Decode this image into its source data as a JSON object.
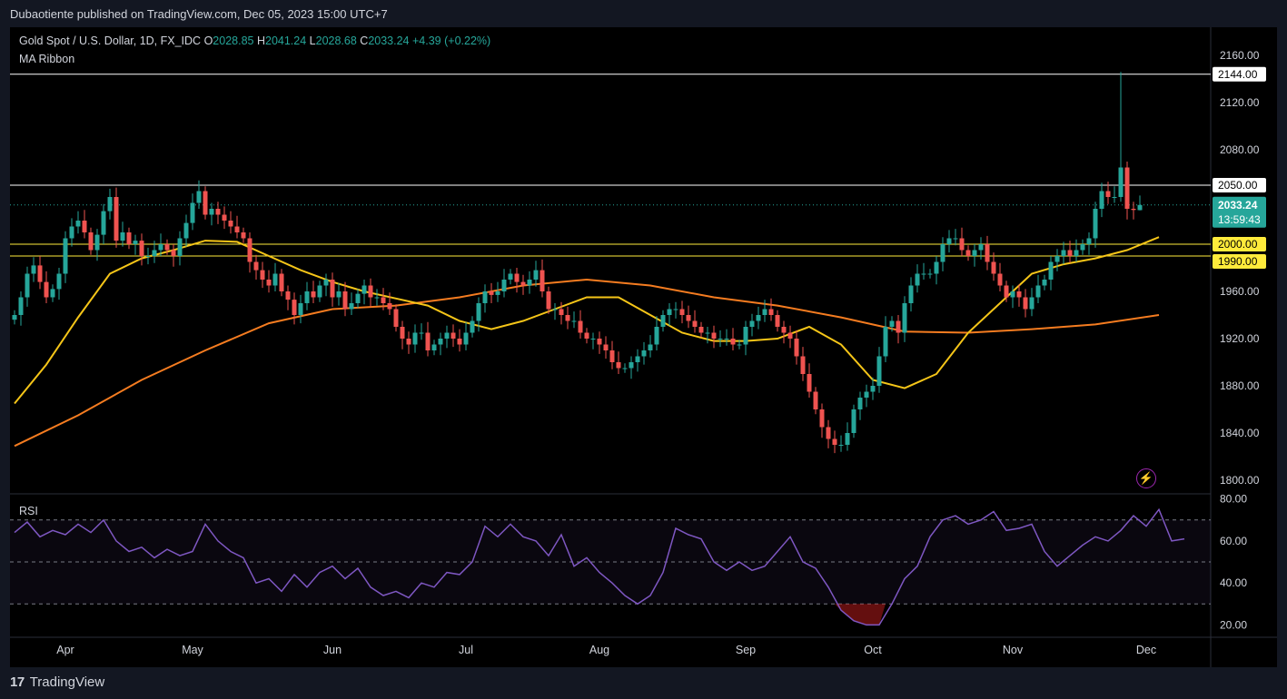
{
  "header": {
    "publisher_line": "Dubaotiente published on TradingView.com, Dec 05, 2023 15:00 UTC+7"
  },
  "legend": {
    "symbol": "Gold Spot / U.S. Dollar, 1D, FX_IDC",
    "open_label": "O",
    "open": "2028.85",
    "high_label": "H",
    "high": "2041.24",
    "low_label": "L",
    "low": "2028.68",
    "close_label": "C",
    "close": "2033.24",
    "change": "+4.39 (+0.22%)",
    "indicator": "MA Ribbon"
  },
  "rsi_panel": {
    "label": "RSI",
    "axis_ticks": [
      "80.00",
      "60.00",
      "40.00",
      "20.00"
    ]
  },
  "price_axis": {
    "ticks": [
      "2160.00",
      "2120.00",
      "2080.00",
      "1960.00",
      "1920.00",
      "1880.00",
      "1840.00",
      "1800.00"
    ],
    "current_price": "2033.24",
    "countdown": "13:59:43"
  },
  "time_axis": {
    "labels": [
      "Apr",
      "May",
      "Jun",
      "Jul",
      "Aug",
      "Sep",
      "Oct",
      "Nov",
      "Dec"
    ]
  },
  "horizontal_levels": [
    {
      "value": 2144.0,
      "label": "2144.00",
      "style": "white"
    },
    {
      "value": 2050.0,
      "label": "2050.00",
      "style": "white"
    },
    {
      "value": 2000.0,
      "label": "2000.00",
      "style": "yellow"
    },
    {
      "value": 1990.0,
      "label": "1990.00",
      "style": "yellow"
    }
  ],
  "footer": {
    "logo": "17",
    "brand": "TradingView"
  },
  "colors": {
    "up": "#26a69a",
    "down": "#ef5350",
    "ma_fast": "#f5c518",
    "ma_slow": "#f57c20",
    "rsi": "#7e57c2",
    "level_white": "#ffffff",
    "level_yellow": "#ffeb3b"
  },
  "chart_data": {
    "type": "candlestick",
    "symbol": "Gold Spot / U.S. Dollar",
    "timeframe": "1D",
    "ylim": [
      1790,
      2170
    ],
    "rsi_ylim": [
      15,
      82
    ],
    "rsi_levels": [
      70,
      50,
      30
    ],
    "month_markers": [
      {
        "label": "Apr",
        "bar": 8
      },
      {
        "label": "May",
        "bar": 28
      },
      {
        "label": "Jun",
        "bar": 50
      },
      {
        "label": "Jul",
        "bar": 71
      },
      {
        "label": "Aug",
        "bar": 92
      },
      {
        "label": "Sep",
        "bar": 115
      },
      {
        "label": "Oct",
        "bar": 135
      },
      {
        "label": "Nov",
        "bar": 157
      },
      {
        "label": "Dec",
        "bar": 178
      }
    ],
    "closes": [
      1940,
      1955,
      1975,
      1982,
      1968,
      1955,
      1962,
      1975,
      2005,
      2015,
      2020,
      2010,
      1995,
      2008,
      2028,
      2040,
      2003,
      2010,
      2000,
      2003,
      1990,
      1990,
      1995,
      2000,
      1995,
      1990,
      2005,
      2018,
      2035,
      2045,
      2025,
      2030,
      2025,
      2020,
      2015,
      2010,
      2005,
      1985,
      1978,
      1970,
      1965,
      1975,
      1960,
      1953,
      1940,
      1950,
      1960,
      1955,
      1965,
      1970,
      1955,
      1960,
      1945,
      1950,
      1958,
      1965,
      1955,
      1955,
      1950,
      1945,
      1930,
      1920,
      1915,
      1925,
      1925,
      1910,
      1915,
      1920,
      1925,
      1920,
      1915,
      1925,
      1935,
      1950,
      1960,
      1957,
      1960,
      1970,
      1975,
      1968,
      1965,
      1970,
      1978,
      1960,
      1945,
      1945,
      1940,
      1935,
      1935,
      1925,
      1920,
      1920,
      1915,
      1910,
      1900,
      1895,
      1895,
      1900,
      1905,
      1910,
      1915,
      1930,
      1940,
      1945,
      1945,
      1940,
      1935,
      1930,
      1925,
      1925,
      1920,
      1920,
      1920,
      1915,
      1915,
      1930,
      1935,
      1940,
      1945,
      1940,
      1930,
      1925,
      1920,
      1905,
      1890,
      1875,
      1860,
      1845,
      1835,
      1830,
      1830,
      1840,
      1860,
      1870,
      1875,
      1880,
      1905,
      1930,
      1935,
      1925,
      1950,
      1965,
      1975,
      1975,
      1975,
      1985,
      2000,
      2005,
      2005,
      1995,
      1990,
      1995,
      2000,
      1985,
      1975,
      1965,
      1955,
      1960,
      1955,
      1945,
      1955,
      1965,
      1970,
      1985,
      1990,
      1995,
      1990,
      1995,
      2000,
      2005,
      2030,
      2045,
      2040,
      2040,
      2065,
      2030,
      2029,
      2033
    ],
    "ma_fast_points": [
      [
        0,
        1865
      ],
      [
        5,
        1898
      ],
      [
        10,
        1938
      ],
      [
        15,
        1975
      ],
      [
        20,
        1988
      ],
      [
        25,
        1995
      ],
      [
        30,
        2003
      ],
      [
        35,
        2002
      ],
      [
        40,
        1990
      ],
      [
        45,
        1978
      ],
      [
        50,
        1968
      ],
      [
        55,
        1960
      ],
      [
        60,
        1954
      ],
      [
        65,
        1948
      ],
      [
        70,
        1935
      ],
      [
        75,
        1928
      ],
      [
        80,
        1935
      ],
      [
        85,
        1945
      ],
      [
        90,
        1955
      ],
      [
        95,
        1955
      ],
      [
        100,
        1940
      ],
      [
        105,
        1925
      ],
      [
        110,
        1918
      ],
      [
        115,
        1918
      ],
      [
        120,
        1920
      ],
      [
        125,
        1930
      ],
      [
        130,
        1915
      ],
      [
        135,
        1885
      ],
      [
        140,
        1878
      ],
      [
        145,
        1890
      ],
      [
        150,
        1925
      ],
      [
        155,
        1950
      ],
      [
        160,
        1975
      ],
      [
        165,
        1983
      ],
      [
        170,
        1988
      ],
      [
        175,
        1995
      ],
      [
        180,
        2006
      ]
    ],
    "ma_slow_points": [
      [
        0,
        1829
      ],
      [
        10,
        1855
      ],
      [
        20,
        1885
      ],
      [
        30,
        1910
      ],
      [
        40,
        1933
      ],
      [
        50,
        1945
      ],
      [
        60,
        1948
      ],
      [
        70,
        1955
      ],
      [
        80,
        1965
      ],
      [
        90,
        1970
      ],
      [
        100,
        1965
      ],
      [
        110,
        1955
      ],
      [
        120,
        1948
      ],
      [
        130,
        1938
      ],
      [
        140,
        1926
      ],
      [
        150,
        1925
      ],
      [
        160,
        1928
      ],
      [
        170,
        1932
      ],
      [
        180,
        1940
      ]
    ],
    "rsi_points": [
      [
        0,
        64
      ],
      [
        2,
        69
      ],
      [
        4,
        62
      ],
      [
        6,
        65
      ],
      [
        8,
        63
      ],
      [
        10,
        68
      ],
      [
        12,
        64
      ],
      [
        14,
        70
      ],
      [
        16,
        60
      ],
      [
        18,
        55
      ],
      [
        20,
        57
      ],
      [
        22,
        52
      ],
      [
        24,
        56
      ],
      [
        26,
        53
      ],
      [
        28,
        55
      ],
      [
        30,
        68
      ],
      [
        32,
        60
      ],
      [
        34,
        55
      ],
      [
        36,
        52
      ],
      [
        38,
        40
      ],
      [
        40,
        42
      ],
      [
        42,
        36
      ],
      [
        44,
        44
      ],
      [
        46,
        38
      ],
      [
        48,
        45
      ],
      [
        50,
        48
      ],
      [
        52,
        42
      ],
      [
        54,
        47
      ],
      [
        56,
        38
      ],
      [
        58,
        34
      ],
      [
        60,
        36
      ],
      [
        62,
        33
      ],
      [
        64,
        40
      ],
      [
        66,
        38
      ],
      [
        68,
        45
      ],
      [
        70,
        44
      ],
      [
        72,
        50
      ],
      [
        74,
        67
      ],
      [
        76,
        62
      ],
      [
        78,
        68
      ],
      [
        80,
        62
      ],
      [
        82,
        60
      ],
      [
        84,
        53
      ],
      [
        86,
        63
      ],
      [
        88,
        48
      ],
      [
        90,
        52
      ],
      [
        92,
        45
      ],
      [
        94,
        40
      ],
      [
        96,
        34
      ],
      [
        98,
        30
      ],
      [
        100,
        34
      ],
      [
        102,
        45
      ],
      [
        104,
        66
      ],
      [
        106,
        63
      ],
      [
        108,
        61
      ],
      [
        110,
        50
      ],
      [
        112,
        46
      ],
      [
        114,
        50
      ],
      [
        116,
        46
      ],
      [
        118,
        48
      ],
      [
        120,
        55
      ],
      [
        122,
        62
      ],
      [
        124,
        50
      ],
      [
        126,
        47
      ],
      [
        128,
        38
      ],
      [
        130,
        27
      ],
      [
        132,
        22
      ],
      [
        134,
        20
      ],
      [
        136,
        20
      ],
      [
        138,
        30
      ],
      [
        140,
        42
      ],
      [
        142,
        48
      ],
      [
        144,
        62
      ],
      [
        146,
        70
      ],
      [
        148,
        72
      ],
      [
        150,
        68
      ],
      [
        152,
        70
      ],
      [
        154,
        74
      ],
      [
        156,
        65
      ],
      [
        158,
        66
      ],
      [
        160,
        68
      ],
      [
        162,
        55
      ],
      [
        164,
        48
      ],
      [
        166,
        53
      ],
      [
        168,
        58
      ],
      [
        170,
        62
      ],
      [
        172,
        60
      ],
      [
        174,
        65
      ],
      [
        176,
        72
      ],
      [
        178,
        67
      ],
      [
        180,
        75
      ],
      [
        182,
        60
      ],
      [
        184,
        61
      ]
    ]
  }
}
